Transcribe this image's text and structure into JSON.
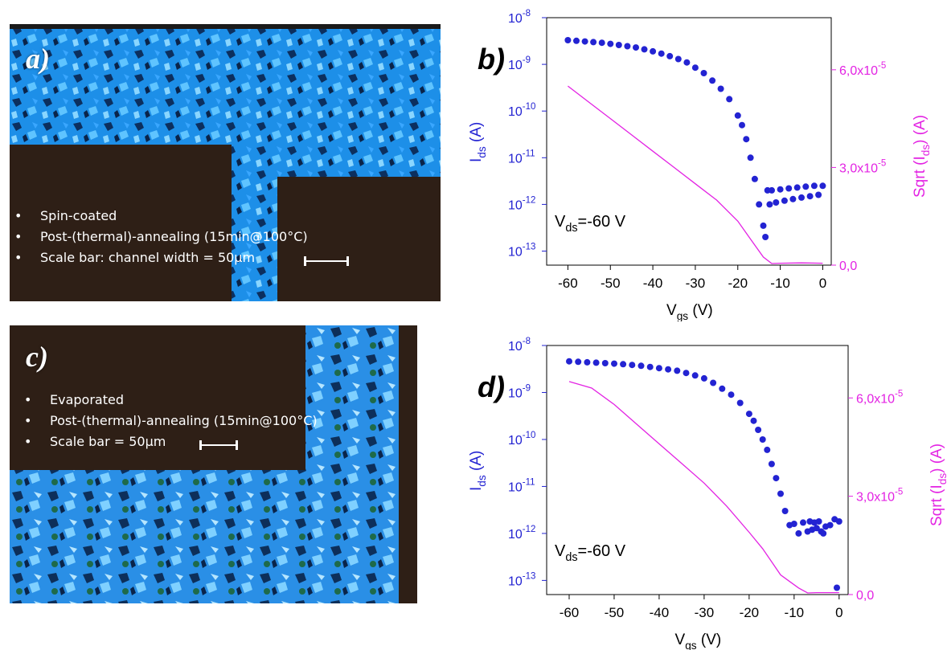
{
  "colors": {
    "current": "#2323d2",
    "sqrt": "#e323e3",
    "substrate": "#2e1f16",
    "film": "#1d8fe8"
  },
  "microscopy": [
    {
      "label": "a)",
      "bullets": [
        "Spin-coated",
        "Post-(thermal)-annealing (15min@100°C)",
        "Scale bar: channel width = 50µm"
      ]
    },
    {
      "label": "c)",
      "bullets": [
        "Evaporated",
        "Post-(thermal)-annealing (15min@100°C)",
        "Scale bar = 50µm"
      ]
    }
  ],
  "chart_data": [
    {
      "type": "scatter",
      "panel_label": "b)",
      "annotation": "Vds=-60 V",
      "xlabel": "Vgs (V)",
      "ylabel_left": "Ids (A)",
      "ylabel_right": "Sqrt (Ids) (A)",
      "xlim": [
        -65,
        2
      ],
      "xticks": [
        "-60",
        "-50",
        "-40",
        "-30",
        "-20",
        "-10",
        "0"
      ],
      "yscale_left": "log",
      "ylim_left": [
        5e-14,
        1e-08
      ],
      "yticks_left": [
        "10-13",
        "10-12",
        "10-11",
        "10-10",
        "10-9",
        "10-8"
      ],
      "ylim_right": [
        0,
        7.6e-05
      ],
      "yticks_right": [
        "0,0",
        "3,0x10-5",
        "6,0x10-5"
      ],
      "series": [
        {
          "kind": "markers",
          "x": [
            -60,
            -58,
            -56,
            -54,
            -52,
            -50,
            -48,
            -46,
            -44,
            -42,
            -40,
            -38,
            -36,
            -34,
            -32,
            -30,
            -28,
            -26,
            -24,
            -22,
            -20,
            -19,
            -18,
            -17,
            -16,
            -15,
            -14,
            -13.5,
            -13,
            -12.5,
            -12,
            -11,
            -10,
            -9,
            -8,
            -7,
            -6,
            -5,
            -4,
            -3,
            -2,
            -1,
            0
          ],
          "y": [
            3.3e-09,
            3.2e-09,
            3.1e-09,
            3e-09,
            2.9e-09,
            2.75e-09,
            2.6e-09,
            2.45e-09,
            2.3e-09,
            2.1e-09,
            1.9e-09,
            1.7e-09,
            1.5e-09,
            1.3e-09,
            1.1e-09,
            8.5e-10,
            6.5e-10,
            4.5e-10,
            3e-10,
            1.8e-10,
            8e-11,
            5e-11,
            2.5e-11,
            1e-11,
            3.5e-12,
            1e-12,
            3.5e-13,
            2e-13,
            2e-12,
            1e-12,
            2e-12,
            1.1e-12,
            2.1e-12,
            1.2e-12,
            2.2e-12,
            1.3e-12,
            2.3e-12,
            1.4e-12,
            2.4e-12,
            1.5e-12,
            2.5e-12,
            1.6e-12,
            2.5e-12
          ]
        },
        {
          "kind": "line",
          "axis": "right",
          "x": [
            -60,
            -55,
            -50,
            -45,
            -40,
            -35,
            -30,
            -25,
            -20,
            -17,
            -14,
            -12,
            -10,
            -5,
            0
          ],
          "y": [
            5.5e-05,
            5e-05,
            4.5e-05,
            4e-05,
            3.5e-05,
            3e-05,
            2.5e-05,
            2e-05,
            1.35e-05,
            8e-06,
            2.5e-06,
            5e-07,
            6e-07,
            7e-07,
            6e-07
          ]
        }
      ]
    },
    {
      "type": "scatter",
      "panel_label": "d)",
      "annotation": "Vds=-60 V",
      "xlabel": "Vgs (V)",
      "ylabel_left": "Ids (A)",
      "ylabel_right": "Sqrt (Ids) (A)",
      "xlim": [
        -65,
        2
      ],
      "xticks": [
        "-60",
        "-50",
        "-40",
        "-30",
        "-20",
        "-10",
        "0"
      ],
      "yscale_left": "log",
      "ylim_left": [
        5e-14,
        1e-08
      ],
      "yticks_left": [
        "10-13",
        "10-12",
        "10-11",
        "10-10",
        "10-9",
        "10-8"
      ],
      "ylim_right": [
        0,
        7.6e-05
      ],
      "yticks_right": [
        "0,0",
        "3,0x10-5",
        "6,0x10-5"
      ],
      "series": [
        {
          "kind": "markers",
          "x": [
            -60,
            -58,
            -56,
            -54,
            -52,
            -50,
            -48,
            -46,
            -44,
            -42,
            -40,
            -38,
            -36,
            -34,
            -32,
            -30,
            -28,
            -26,
            -24,
            -22,
            -20,
            -19,
            -18,
            -17,
            -16,
            -15,
            -14,
            -13,
            -12,
            -11,
            -10,
            -9,
            -8,
            -7,
            -6.5,
            -6,
            -5.5,
            -5,
            -4.5,
            -4,
            -3.5,
            -3,
            -2,
            -1,
            -0.5,
            0
          ],
          "y": [
            4.6e-09,
            4.5e-09,
            4.4e-09,
            4.3e-09,
            4.2e-09,
            4.1e-09,
            4e-09,
            3.85e-09,
            3.7e-09,
            3.5e-09,
            3.3e-09,
            3.1e-09,
            2.9e-09,
            2.6e-09,
            2.3e-09,
            2e-09,
            1.6e-09,
            1.2e-09,
            9e-10,
            6e-10,
            3.5e-10,
            2.5e-10,
            1.6e-10,
            1e-10,
            6e-11,
            3e-11,
            1.5e-11,
            7e-12,
            3e-12,
            1.5e-12,
            1.6e-12,
            1e-12,
            1.7e-12,
            1.1e-12,
            1.8e-12,
            1.2e-12,
            1.7e-12,
            1.3e-12,
            1.8e-12,
            1.1e-12,
            1e-12,
            1.4e-12,
            1.5e-12,
            2e-12,
            7e-14,
            1.8e-12
          ]
        },
        {
          "kind": "line",
          "axis": "right",
          "x": [
            -60,
            -55,
            -50,
            -45,
            -40,
            -35,
            -30,
            -25,
            -20,
            -17,
            -15,
            -13,
            -11,
            -9,
            -7,
            -5,
            0
          ],
          "y": [
            6.5e-05,
            6.3e-05,
            5.8e-05,
            5.2e-05,
            4.6e-05,
            4e-05,
            3.4e-05,
            2.7e-05,
            1.9e-05,
            1.4e-05,
            1e-05,
            6e-06,
            4e-06,
            2e-06,
            5e-07,
            6e-07,
            6e-07
          ]
        }
      ]
    }
  ]
}
